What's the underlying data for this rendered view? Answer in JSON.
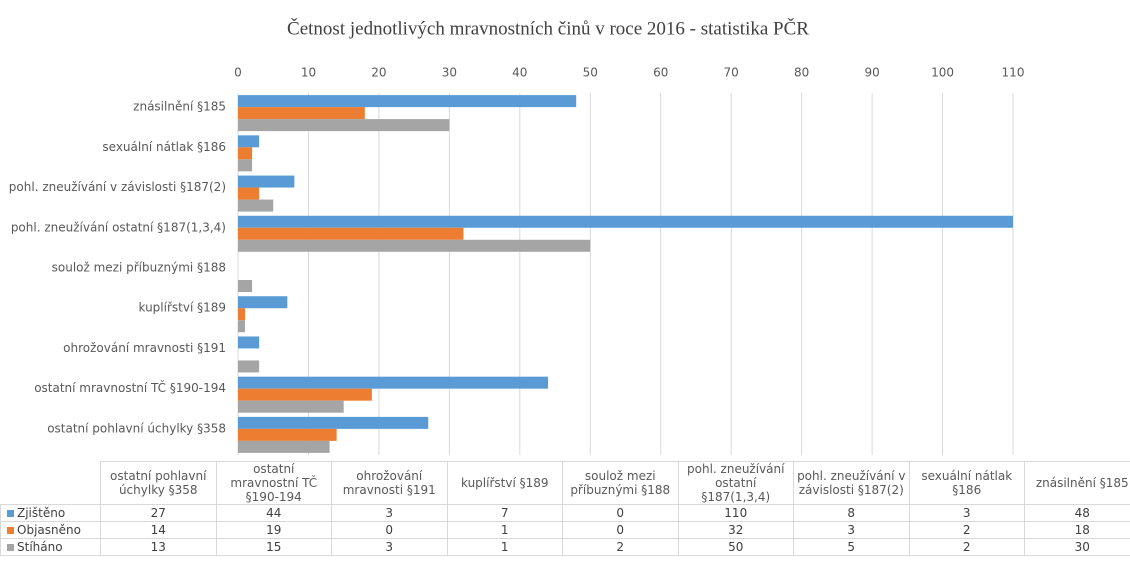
{
  "chart_data": {
    "type": "bar",
    "orientation": "horizontal",
    "title": "Četnost jednotlivých mravnostních činů v roce 2016 - statistika PČR",
    "categories": [
      "ostatní pohlavní úchylky §358",
      "ostatní mravnostní TČ §190-194",
      "ohrožování mravnosti §191",
      "kuplířství §189",
      "soulož mezi příbuznými §188",
      "pohl. zneužívání ostatní §187(1,3,4)",
      "pohl. zneužívání v závislosti §187(2)",
      "sexuální nátlak §186",
      "znásilnění §185"
    ],
    "series": [
      {
        "name": "Zjištěno",
        "color": "#5b9bd5",
        "values": [
          27,
          44,
          3,
          7,
          0,
          110,
          8,
          3,
          48
        ]
      },
      {
        "name": "Objasněno",
        "color": "#ed7d31",
        "values": [
          14,
          19,
          0,
          1,
          0,
          32,
          3,
          2,
          18
        ]
      },
      {
        "name": "Stíháno",
        "color": "#a5a5a5",
        "values": [
          13,
          15,
          3,
          1,
          2,
          50,
          5,
          2,
          30
        ]
      }
    ],
    "xlim": [
      0,
      110
    ],
    "xticks": [
      0,
      10,
      20,
      30,
      40,
      50,
      60,
      70,
      80,
      90,
      100,
      110
    ],
    "grid": true,
    "data_table": true
  }
}
